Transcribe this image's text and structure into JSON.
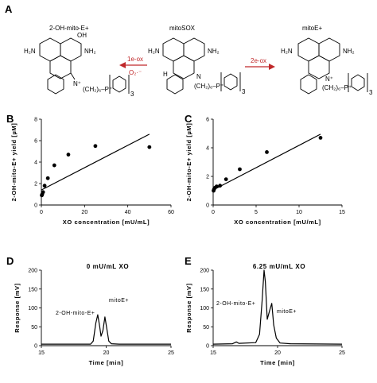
{
  "figure": {
    "panel_a": {
      "label": "A",
      "compounds": [
        {
          "name": "2-OH-mito-E+",
          "formula": {
            "oh": "OH",
            "nh2_left": "H₂N",
            "nh2_right": "NH₂",
            "n_plus": "N⁺",
            "chain": "(CH₂)₆–P⁺",
            "sub": "3"
          }
        },
        {
          "name": "mitoSOX",
          "formula": {
            "h": "H",
            "nh2_left": "H₂N",
            "nh2_right": "NH₂",
            "n": "N",
            "chain": "(CH₂)₆–P⁺",
            "sub": "3"
          }
        },
        {
          "name": "mitoE+",
          "formula": {
            "nh2_left": "H₂N",
            "nh2_right": "NH₂",
            "n_plus": "N⁺",
            "chain": "(CH₂)₆–P⁺",
            "sub": "3"
          }
        }
      ],
      "arrows": [
        {
          "top": "1e-ox",
          "bottom": "O₂·⁻",
          "color": "#c0282a"
        },
        {
          "top": "2e-ox",
          "bottom": "",
          "color": "#c0282a"
        }
      ]
    },
    "panel_b": {
      "label": "B"
    },
    "panel_c": {
      "label": "C"
    },
    "panel_d": {
      "label": "D",
      "peak_labels": [
        "2-OH-mito-E+",
        "mitoE+"
      ]
    },
    "panel_e": {
      "label": "E",
      "peak_labels": [
        "2-OH-mito-E+",
        "mitoE+"
      ]
    }
  },
  "chart_data": [
    {
      "type": "scatter",
      "title": "",
      "xlabel": "XO concentration [mU/mL]",
      "ylabel": "2-OH-mito-E+ yield [µM]",
      "xlim": [
        0,
        60
      ],
      "ylim": [
        0,
        8
      ],
      "xticks": [
        "0",
        "20",
        "40",
        "60"
      ],
      "yticks": [
        "0",
        "2",
        "4",
        "6",
        "8"
      ],
      "points": {
        "x": [
          0.2,
          0.4,
          0.8,
          1.5,
          3,
          6,
          12.5,
          25,
          50
        ],
        "y": [
          0.9,
          1.0,
          1.2,
          1.8,
          2.5,
          3.7,
          4.7,
          5.5,
          5.4
        ]
      },
      "fit": {
        "x": [
          0,
          50
        ],
        "y": [
          1.4,
          6.6
        ]
      }
    },
    {
      "type": "scatter",
      "title": "",
      "xlabel": "XO concentration [mU/mL]",
      "ylabel": "2-OH-mito-E+ yield [µM]",
      "xlim": [
        0,
        15
      ],
      "ylim": [
        0,
        6
      ],
      "xticks": [
        "0",
        "5",
        "10",
        "15"
      ],
      "yticks": [
        "0",
        "2",
        "4",
        "6"
      ],
      "points": {
        "x": [
          0.05,
          0.1,
          0.2,
          0.4,
          0.8,
          1.5,
          3.1,
          6.25,
          12.5
        ],
        "y": [
          1.0,
          1.1,
          1.2,
          1.3,
          1.35,
          1.8,
          2.5,
          3.7,
          4.7
        ]
      },
      "fit": {
        "x": [
          0,
          12.5
        ],
        "y": [
          1.05,
          4.95
        ]
      }
    },
    {
      "type": "line",
      "title": "0 mU/mL XO",
      "xlabel": "Time [min]",
      "ylabel": "Response [mV]",
      "xlim": [
        15,
        25
      ],
      "ylim": [
        0,
        200
      ],
      "xticks": [
        "15",
        "20",
        "25"
      ],
      "yticks": [
        "0",
        "50",
        "100",
        "150",
        "200"
      ],
      "series": [
        {
          "x": [
            15,
            18.8,
            19.0,
            19.2,
            19.35,
            19.5,
            19.6,
            19.75,
            19.9,
            20.05,
            20.2,
            20.4,
            21,
            25
          ],
          "y": [
            4,
            4,
            12,
            60,
            82,
            50,
            25,
            40,
            76,
            45,
            12,
            5,
            4,
            4
          ]
        }
      ]
    },
    {
      "type": "line",
      "title": "6.25 mU/mL XO",
      "xlabel": "Time [min]",
      "ylabel": "Response [mV]",
      "xlim": [
        15,
        25
      ],
      "ylim": [
        0,
        200
      ],
      "xticks": [
        "15",
        "20",
        "25"
      ],
      "yticks": [
        "0",
        "50",
        "100",
        "150",
        "200"
      ],
      "series": [
        {
          "x": [
            15,
            16.5,
            16.8,
            17.0,
            18.3,
            18.6,
            18.8,
            18.95,
            19.05,
            19.2,
            19.4,
            19.55,
            19.7,
            19.9,
            20.2,
            21,
            25
          ],
          "y": [
            4,
            5,
            10,
            6,
            8,
            30,
            120,
            200,
            170,
            70,
            95,
            112,
            55,
            20,
            7,
            5,
            4
          ]
        }
      ]
    }
  ]
}
